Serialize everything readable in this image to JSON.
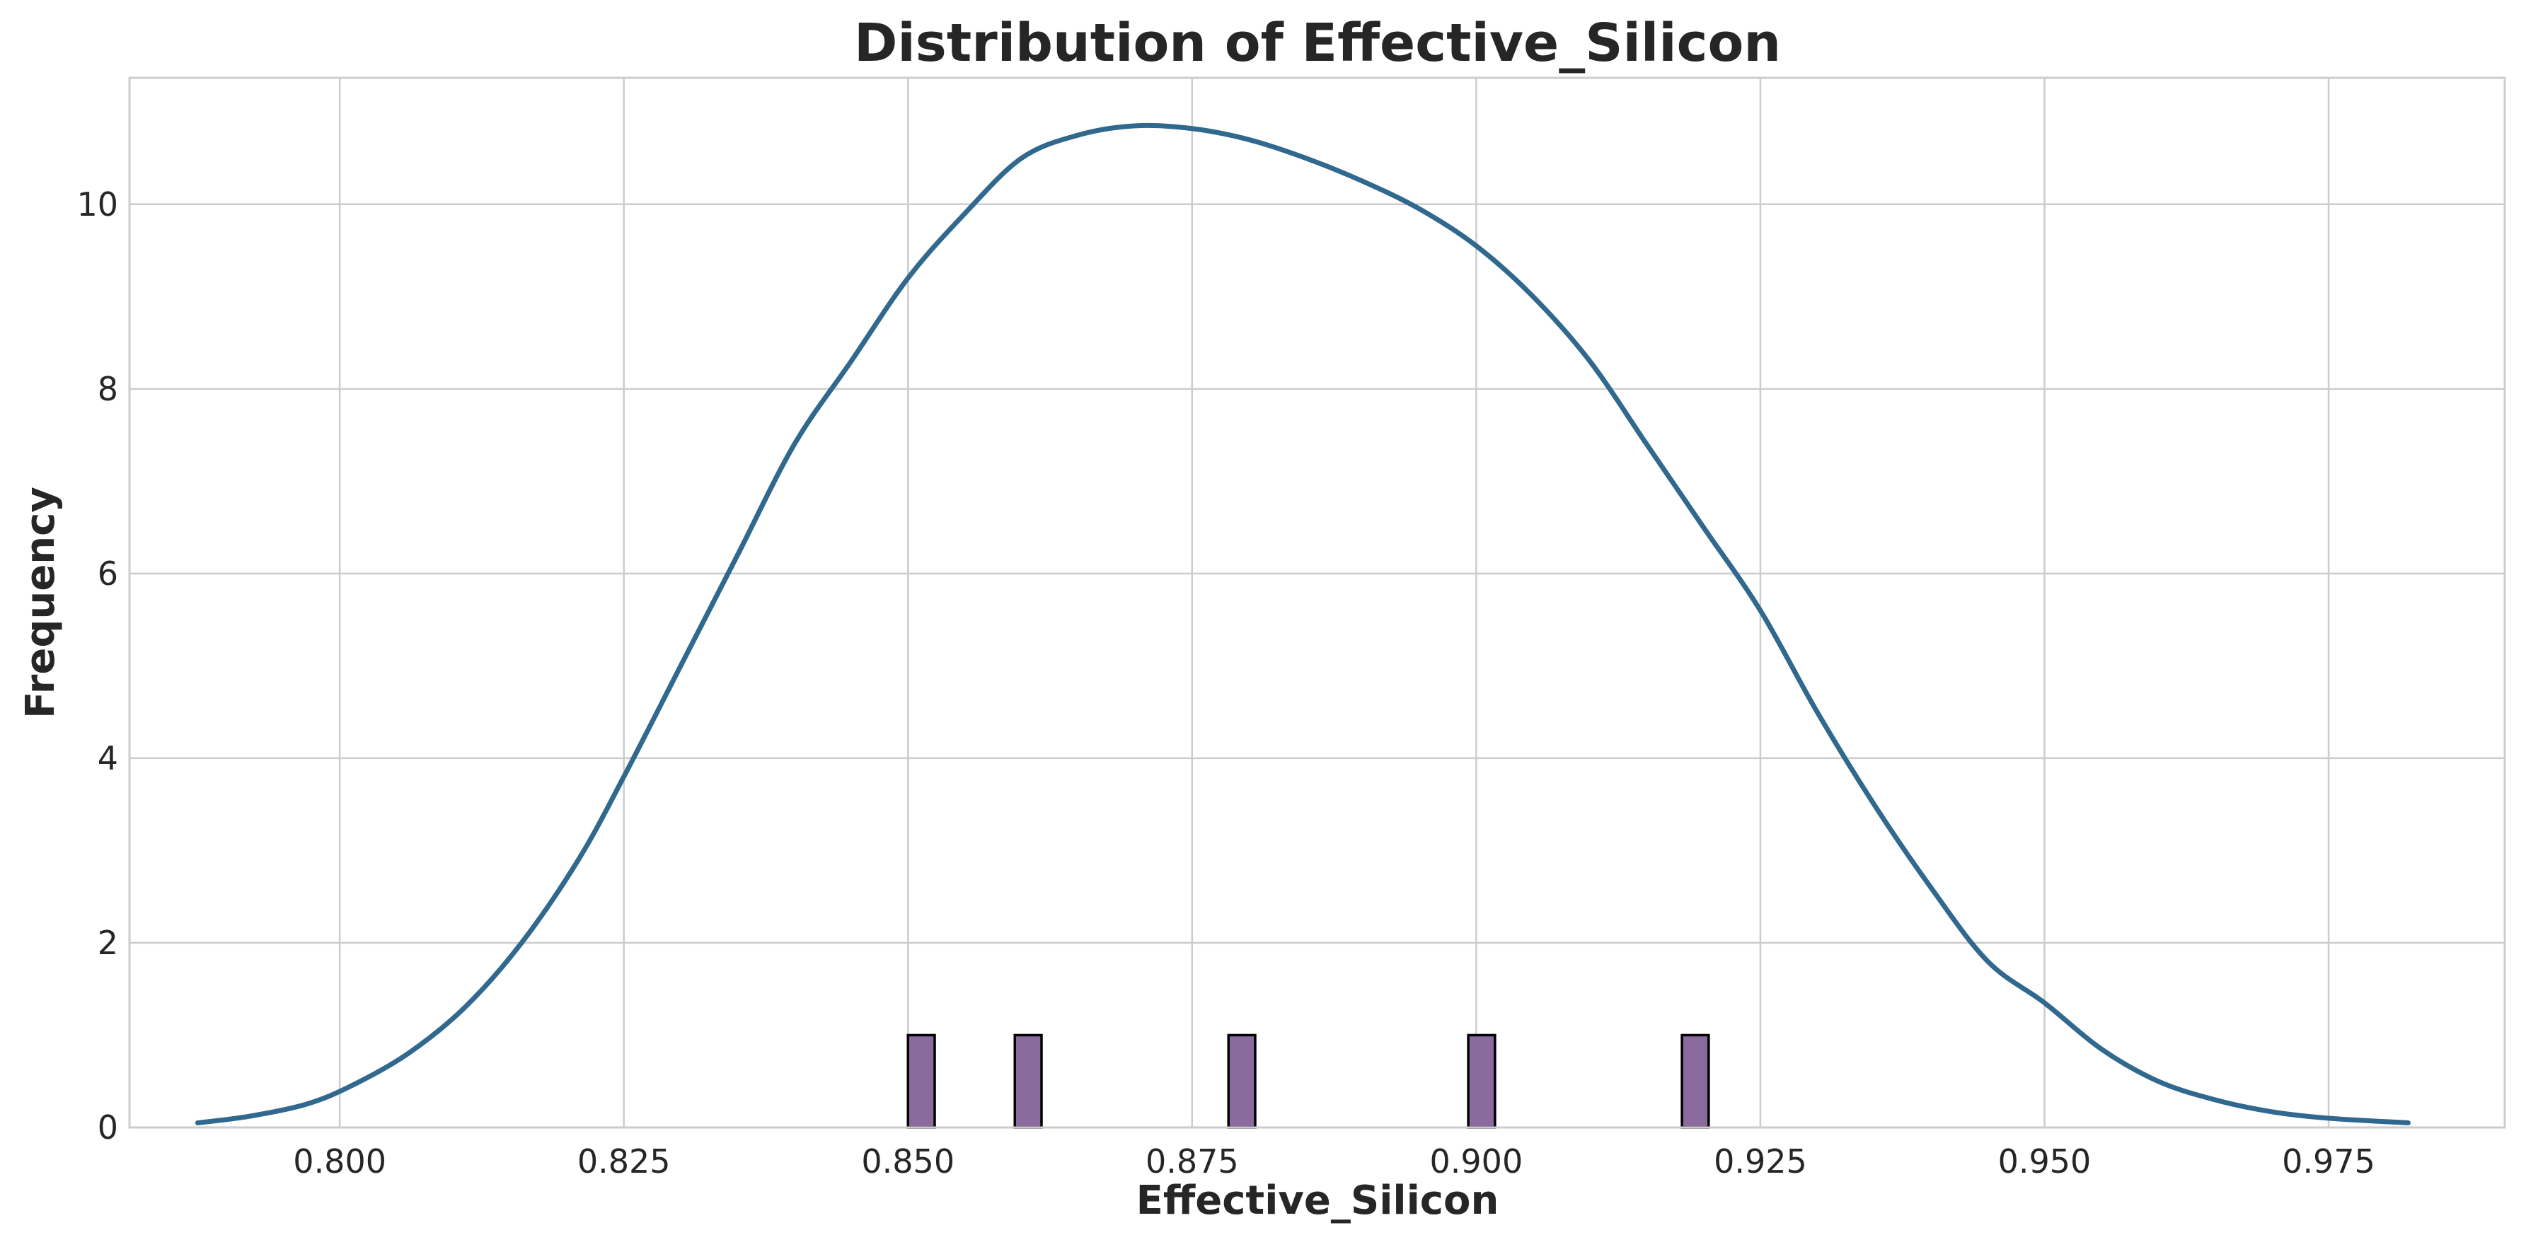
{
  "chart_data": {
    "type": "bar",
    "title": "Distribution of Effective_Silicon",
    "xlabel": "Effective_Silicon",
    "ylabel": "Frequency",
    "xlim": [
      0.7815,
      0.9905
    ],
    "ylim": [
      0,
      11.37
    ],
    "xticks": [
      0.8,
      0.825,
      0.85,
      0.875,
      0.9,
      0.925,
      0.95,
      0.975
    ],
    "xtick_labels": [
      "0.800",
      "0.825",
      "0.850",
      "0.875",
      "0.900",
      "0.925",
      "0.950",
      "0.975"
    ],
    "yticks": [
      0,
      2,
      4,
      6,
      8,
      10
    ],
    "ytick_labels": [
      "0",
      "2",
      "4",
      "6",
      "8",
      "10"
    ],
    "grid": true,
    "histogram": {
      "bin_width": 0.00235,
      "bins": [
        {
          "x_start": 0.85,
          "count": 1
        },
        {
          "x_start": 0.8594,
          "count": 1
        },
        {
          "x_start": 0.8782,
          "count": 1
        },
        {
          "x_start": 0.8993,
          "count": 1
        },
        {
          "x_start": 0.9181,
          "count": 1
        }
      ],
      "color": "#8B6A9E",
      "edge_color": "#000000"
    },
    "series": [
      {
        "type": "line",
        "x": [
          0.7875,
          0.792,
          0.797,
          0.801,
          0.806,
          0.811,
          0.816,
          0.821,
          0.825,
          0.83,
          0.835,
          0.84,
          0.845,
          0.85,
          0.855,
          0.86,
          0.865,
          0.87,
          0.875,
          0.88,
          0.885,
          0.89,
          0.895,
          0.9,
          0.905,
          0.91,
          0.915,
          0.92,
          0.925,
          0.93,
          0.935,
          0.94,
          0.945,
          0.95,
          0.955,
          0.96,
          0.965,
          0.97,
          0.975,
          0.982
        ],
        "values": [
          0.05,
          0.12,
          0.25,
          0.45,
          0.8,
          1.3,
          2.0,
          2.9,
          3.8,
          5.0,
          6.2,
          7.4,
          8.3,
          9.2,
          9.9,
          10.5,
          10.75,
          10.85,
          10.82,
          10.7,
          10.5,
          10.25,
          9.95,
          9.55,
          9.0,
          8.3,
          7.4,
          6.5,
          5.6,
          4.5,
          3.5,
          2.6,
          1.8,
          1.35,
          0.85,
          0.5,
          0.3,
          0.17,
          0.1,
          0.05
        ],
        "color": "#31688E"
      }
    ]
  }
}
